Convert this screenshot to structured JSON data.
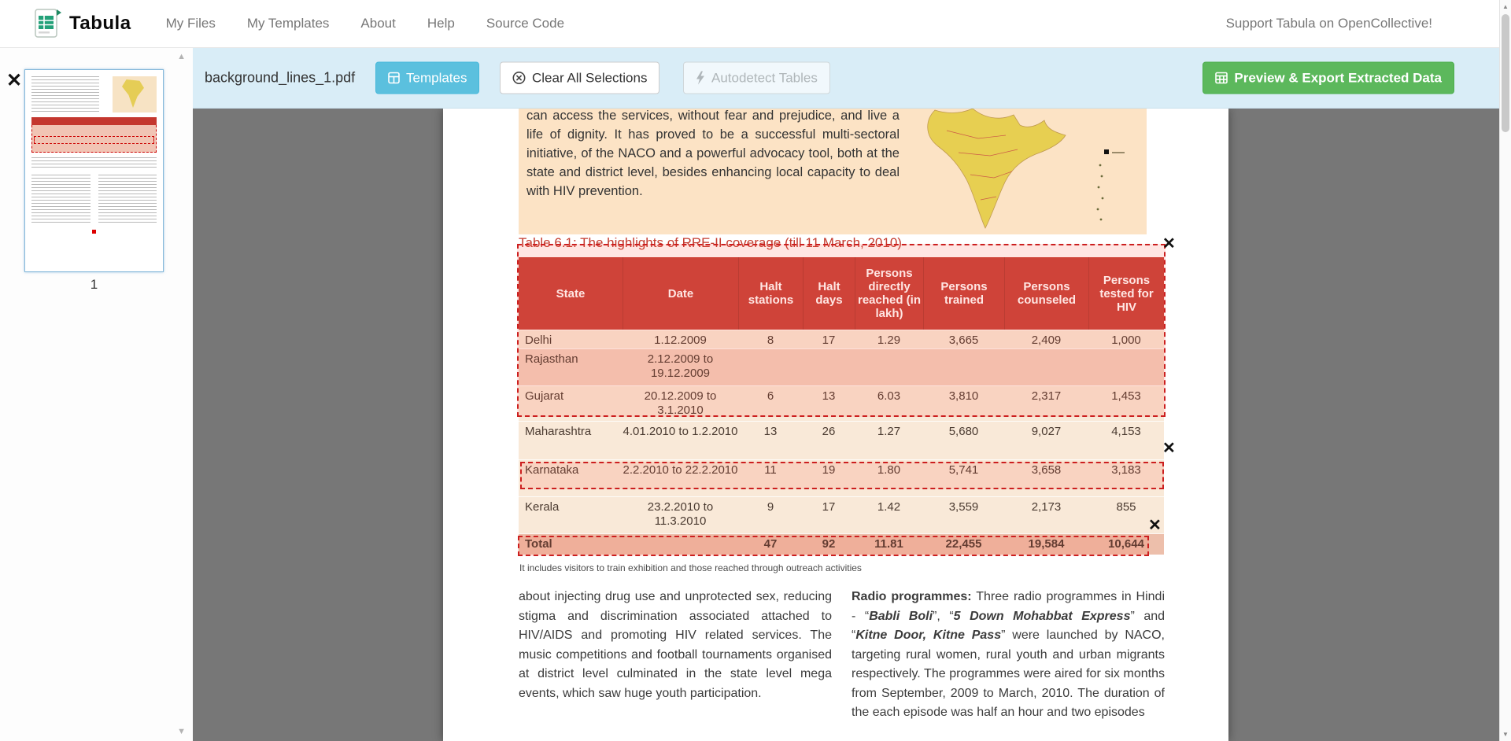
{
  "navbar": {
    "brand": "Tabula",
    "items": [
      {
        "label": "My Files"
      },
      {
        "label": "My Templates"
      },
      {
        "label": "About"
      },
      {
        "label": "Help"
      },
      {
        "label": "Source Code"
      }
    ],
    "right_text": "Support Tabula on OpenCollective!"
  },
  "toolbar": {
    "filename": "background_lines_1.pdf",
    "templates_label": "Templates",
    "clear_label": "Clear All Selections",
    "autodetect_label": "Autodetect Tables",
    "export_label": "Preview & Export Extracted Data"
  },
  "sidebar": {
    "page_number": "1"
  },
  "pdf": {
    "intro_paragraph": "can access the services, without fear and prejudice, and live a life of dignity. It has proved to be a successful multi-sectoral initiative, of the NACO and a powerful advocacy tool, both at the state and district level, besides enhancing local capacity to deal with HIV prevention.",
    "table_title": "Table 6.1: The highlights of RRE-II coverage (till 11 March, 2010)",
    "table": {
      "headers": [
        "State",
        "Date",
        "Halt stations",
        "Halt days",
        "Persons directly reached (in lakh)",
        "Persons trained",
        "Persons counseled",
        "Persons tested for HIV"
      ],
      "rows": [
        [
          "Delhi",
          "1.12.2009",
          "8",
          "17",
          "1.29",
          "3,665",
          "2,409",
          "1,000"
        ],
        [
          "Rajasthan",
          "2.12.2009 to 19.12.2009",
          "",
          "",
          "",
          "",
          "",
          ""
        ],
        [
          "Gujarat",
          "20.12.2009 to 3.1.2010",
          "6",
          "13",
          "6.03",
          "3,810",
          "2,317",
          "1,453"
        ],
        [
          "Maharashtra",
          "4.01.2010 to 1.2.2010",
          "13",
          "26",
          "1.27",
          "5,680",
          "9,027",
          "4,153"
        ],
        [
          "Karnataka",
          "2.2.2010 to 22.2.2010",
          "11",
          "19",
          "1.80",
          "5,741",
          "3,658",
          "3,183"
        ],
        [
          "Kerala",
          "23.2.2010 to 11.3.2010",
          "9",
          "17",
          "1.42",
          "3,559",
          "2,173",
          "855"
        ],
        [
          "Total",
          "",
          "47",
          "92",
          "11.81",
          "22,455",
          "19,584",
          "10,644"
        ]
      ],
      "footnote": "It includes visitors to train exhibition and those reached through outreach activities"
    },
    "left_paragraph": "about injecting drug use and unprotected sex, reducing stigma and discrimination associated attached to HIV/AIDS and promoting HIV related services. The music competitions and football tournaments organised at district level culminated in the state level mega events, which saw huge youth participation.",
    "right_paragraph": [
      {
        "text": "Radio programmes:",
        "bold": true
      },
      {
        "text": " Three radio programmes in Hindi - “"
      },
      {
        "text": "Babli Boli",
        "bold": true,
        "italic": true
      },
      {
        "text": "”, “"
      },
      {
        "text": "5 Down Mohabbat Express",
        "bold": true,
        "italic": true
      },
      {
        "text": "” and “"
      },
      {
        "text": "Kitne Door, Kitne Pass",
        "bold": true,
        "italic": true
      },
      {
        "text": "” were launched by NACO, targeting rural women, rural youth and urban migrants respectively. The programmes were aired for six months from September, 2009 to March, 2010. The duration of the each episode was half an hour and two episodes"
      }
    ]
  },
  "colors": {
    "toolbar_bg": "#d9edf7",
    "templates_button": "#5bc0de",
    "export_button": "#5cb85c",
    "selection_red": "#cc1f1f",
    "table_header_red": "#c8423a",
    "table_title_red": "#c43b2e"
  }
}
